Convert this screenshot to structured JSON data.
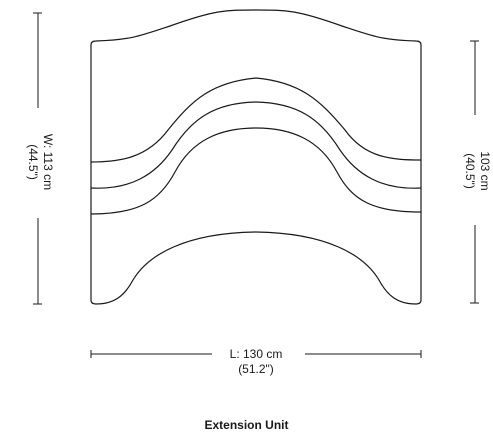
{
  "dimensions": {
    "width": {
      "label": "W: 113 cm",
      "imperial": "(44.5\")"
    },
    "depth": {
      "label": "103 cm",
      "imperial": "(40.5\")"
    },
    "length": {
      "label": "L: 130 cm",
      "imperial": "(51.2\")"
    }
  },
  "caption": "Extension Unit",
  "colors": {
    "line": "#1a1a1a",
    "background": "#ffffff"
  }
}
